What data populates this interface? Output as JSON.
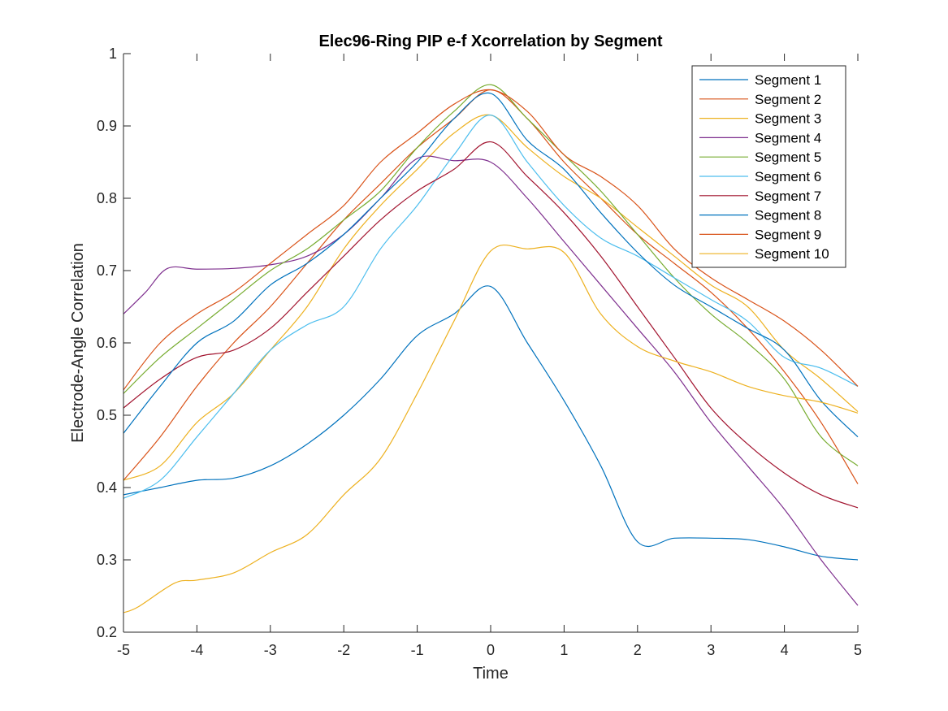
{
  "chart_data": {
    "type": "line",
    "title": "Elec96-Ring PIP e-f Xcorrelation by Segment",
    "xlabel": "Time",
    "ylabel": "Electrode-Angle Correlation",
    "xlim": [
      -5,
      5
    ],
    "ylim": [
      0.2,
      1
    ],
    "xticks": [
      -5,
      -4,
      -3,
      -2,
      -1,
      0,
      1,
      2,
      3,
      4,
      5
    ],
    "yticks": [
      0.2,
      0.3,
      0.4,
      0.5,
      0.6,
      0.7,
      0.8,
      0.9,
      1
    ],
    "grid": false,
    "legend_position": "top-right",
    "series": [
      {
        "name": "Segment 1",
        "color": "#0072BD",
        "x": [
          -5,
          -4.5,
          -4,
          -3.5,
          -3,
          -2.5,
          -2,
          -1.5,
          -1,
          -0.5,
          0,
          0.5,
          1,
          1.5,
          2,
          2.5,
          3,
          3.5,
          4,
          4.5,
          5
        ],
        "y": [
          0.39,
          0.4,
          0.41,
          0.413,
          0.43,
          0.46,
          0.5,
          0.55,
          0.61,
          0.64,
          0.678,
          0.6,
          0.52,
          0.43,
          0.325,
          0.33,
          0.33,
          0.328,
          0.318,
          0.305,
          0.3
        ]
      },
      {
        "name": "Segment 2",
        "color": "#D95319",
        "x": [
          -5,
          -4.5,
          -4,
          -3.5,
          -3,
          -2.5,
          -2,
          -1.5,
          -1,
          -0.5,
          0,
          0.5,
          1,
          1.5,
          2,
          2.5,
          3,
          3.5,
          4,
          4.5,
          5
        ],
        "y": [
          0.41,
          0.47,
          0.54,
          0.6,
          0.65,
          0.71,
          0.77,
          0.82,
          0.87,
          0.91,
          0.95,
          0.91,
          0.85,
          0.8,
          0.75,
          0.71,
          0.67,
          0.62,
          0.56,
          0.49,
          0.405
        ]
      },
      {
        "name": "Segment 3",
        "color": "#EDB120",
        "x": [
          -5,
          -4.5,
          -4,
          -3.5,
          -3,
          -2.5,
          -2,
          -1.5,
          -1,
          -0.5,
          0,
          0.5,
          1,
          1.5,
          2,
          2.5,
          3,
          3.5,
          4,
          4.5,
          5
        ],
        "y": [
          0.41,
          0.43,
          0.49,
          0.53,
          0.59,
          0.65,
          0.73,
          0.79,
          0.84,
          0.89,
          0.915,
          0.87,
          0.83,
          0.8,
          0.76,
          0.72,
          0.68,
          0.65,
          0.59,
          0.55,
          0.505
        ]
      },
      {
        "name": "Segment 4",
        "color": "#7E2F8E",
        "x": [
          -5,
          -4.7,
          -4.4,
          -4,
          -3.5,
          -3,
          -2.5,
          -2,
          -1.5,
          -1,
          -0.5,
          0,
          0.5,
          1,
          1.5,
          2,
          2.5,
          3,
          3.5,
          4,
          4.5,
          5
        ],
        "y": [
          0.64,
          0.67,
          0.703,
          0.702,
          0.703,
          0.708,
          0.72,
          0.75,
          0.8,
          0.855,
          0.852,
          0.85,
          0.8,
          0.74,
          0.68,
          0.62,
          0.56,
          0.49,
          0.43,
          0.37,
          0.3,
          0.237
        ]
      },
      {
        "name": "Segment 5",
        "color": "#77AC30",
        "x": [
          -5,
          -4.5,
          -4,
          -3.5,
          -3,
          -2.5,
          -2,
          -1.5,
          -1,
          -0.5,
          0,
          0.5,
          1,
          1.5,
          2,
          2.5,
          3,
          3.5,
          4,
          4.5,
          5
        ],
        "y": [
          0.53,
          0.58,
          0.62,
          0.66,
          0.7,
          0.73,
          0.77,
          0.81,
          0.87,
          0.92,
          0.957,
          0.91,
          0.86,
          0.81,
          0.75,
          0.69,
          0.64,
          0.6,
          0.55,
          0.47,
          0.43
        ]
      },
      {
        "name": "Segment 6",
        "color": "#4DBEEE",
        "x": [
          -5,
          -4.5,
          -4,
          -3.5,
          -3,
          -2.5,
          -2,
          -1.5,
          -1,
          -0.5,
          0,
          0.5,
          1,
          1.5,
          2,
          2.5,
          3,
          3.5,
          4,
          4.5,
          5
        ],
        "y": [
          0.385,
          0.41,
          0.47,
          0.53,
          0.59,
          0.625,
          0.65,
          0.73,
          0.79,
          0.86,
          0.915,
          0.85,
          0.79,
          0.745,
          0.72,
          0.69,
          0.66,
          0.63,
          0.58,
          0.565,
          0.54
        ]
      },
      {
        "name": "Segment 7",
        "color": "#A2142F",
        "x": [
          -5,
          -4.5,
          -4,
          -3.5,
          -3,
          -2.5,
          -2,
          -1.5,
          -1,
          -0.5,
          0,
          0.5,
          1,
          1.5,
          2,
          2.5,
          3,
          3.5,
          4,
          4.5,
          5
        ],
        "y": [
          0.51,
          0.55,
          0.58,
          0.59,
          0.62,
          0.67,
          0.72,
          0.77,
          0.81,
          0.84,
          0.878,
          0.83,
          0.78,
          0.72,
          0.65,
          0.58,
          0.51,
          0.46,
          0.42,
          0.39,
          0.372
        ]
      },
      {
        "name": "Segment 8",
        "color": "#0072BD",
        "x": [
          -5,
          -4.5,
          -4,
          -3.5,
          -3,
          -2.5,
          -2,
          -1.5,
          -1,
          -0.5,
          0,
          0.5,
          1,
          1.5,
          2,
          2.5,
          3,
          3.5,
          4,
          4.5,
          5
        ],
        "y": [
          0.475,
          0.54,
          0.6,
          0.63,
          0.68,
          0.71,
          0.75,
          0.8,
          0.85,
          0.91,
          0.945,
          0.88,
          0.84,
          0.78,
          0.725,
          0.68,
          0.65,
          0.62,
          0.59,
          0.52,
          0.47
        ]
      },
      {
        "name": "Segment 9",
        "color": "#D95319",
        "x": [
          -5,
          -4.5,
          -4,
          -3.5,
          -3,
          -2.5,
          -2,
          -1.5,
          -1,
          -0.5,
          0,
          0.5,
          1,
          1.5,
          2,
          2.5,
          3,
          3.5,
          4,
          4.5,
          5
        ],
        "y": [
          0.535,
          0.6,
          0.64,
          0.67,
          0.71,
          0.75,
          0.79,
          0.85,
          0.89,
          0.93,
          0.95,
          0.92,
          0.86,
          0.83,
          0.79,
          0.73,
          0.69,
          0.66,
          0.63,
          0.59,
          0.54
        ]
      },
      {
        "name": "Segment 10",
        "color": "#EDB120",
        "x": [
          -5,
          -4.8,
          -4.3,
          -4,
          -3.5,
          -3,
          -2.5,
          -2,
          -1.5,
          -1,
          -0.5,
          0,
          0.5,
          1,
          1.5,
          2,
          2.5,
          3,
          3.5,
          4,
          4.5,
          5
        ],
        "y": [
          0.227,
          0.235,
          0.268,
          0.272,
          0.282,
          0.31,
          0.335,
          0.39,
          0.44,
          0.53,
          0.63,
          0.727,
          0.73,
          0.725,
          0.64,
          0.595,
          0.575,
          0.56,
          0.54,
          0.527,
          0.518,
          0.503
        ]
      }
    ]
  }
}
